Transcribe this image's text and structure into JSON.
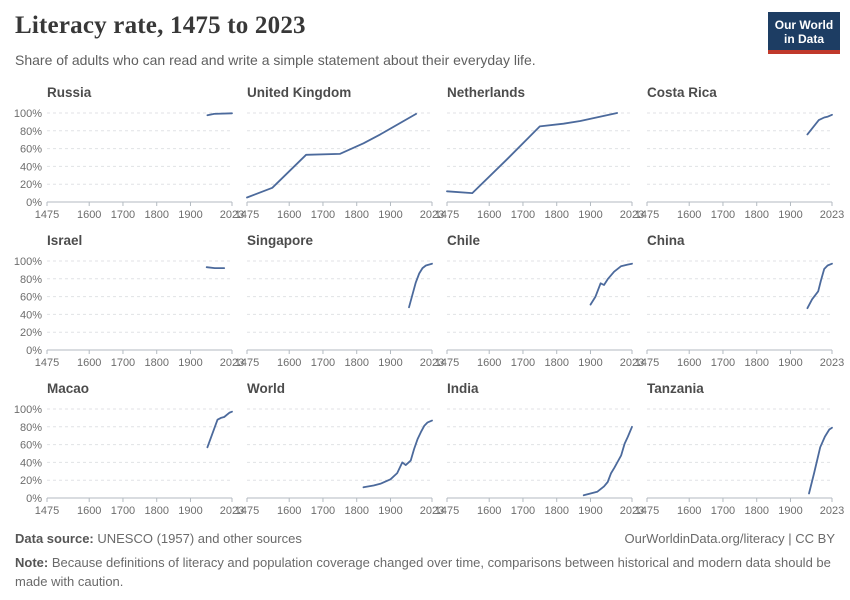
{
  "header": {
    "title": "Literacy rate, 1475 to 2023",
    "subtitle": "Share of adults who can read and write a simple statement about their everyday life.",
    "logo": {
      "line1": "Our World",
      "line2": "in Data"
    }
  },
  "footer": {
    "source_label": "Data source:",
    "source_text": " UNESCO (1957) and other sources",
    "attribution": "OurWorldinData.org/literacy | CC BY",
    "note_label": "Note:",
    "note_text": " Because definitions of literacy and population coverage changed over time, comparisons between historical and modern data should be made with caution."
  },
  "colors": {
    "line": "#4c6a9c",
    "gridline": "#e0e2e5",
    "axis": "#b3bac1",
    "tick_label": "#6d6d6d",
    "logo_bg": "#1d3d63",
    "logo_stripe": "#c0392b"
  },
  "chart_data": {
    "type": "line",
    "title": "Literacy rate, 1475 to 2023",
    "subtitle": "Share of adults who can read and write a simple statement about their everyday life.",
    "unit": "%",
    "layout": "small-multiples 4x3",
    "grid": "dashed horizontal gridlines",
    "legend": "none",
    "x_range": [
      1475,
      2023
    ],
    "y_range": [
      0,
      100
    ],
    "x_ticks": [
      1475,
      1600,
      1700,
      1800,
      1900,
      2023
    ],
    "y_ticks": [
      0,
      20,
      40,
      60,
      80,
      100
    ],
    "y_tick_suffix": "%",
    "panels": [
      {
        "title": "Russia",
        "points": [
          [
            1950,
            97.5
          ],
          [
            1970,
            99
          ],
          [
            2023,
            99.7
          ]
        ]
      },
      {
        "title": "United Kingdom",
        "points": [
          [
            1475,
            5
          ],
          [
            1550,
            16
          ],
          [
            1650,
            53
          ],
          [
            1750,
            54
          ],
          [
            1820,
            66
          ],
          [
            1870,
            76
          ],
          [
            1976,
            99
          ]
        ]
      },
      {
        "title": "Netherlands",
        "points": [
          [
            1475,
            12
          ],
          [
            1550,
            10
          ],
          [
            1650,
            47
          ],
          [
            1750,
            85
          ],
          [
            1820,
            88
          ],
          [
            1870,
            91
          ],
          [
            1979,
            100
          ]
        ]
      },
      {
        "title": "Costa Rica",
        "points": [
          [
            1950,
            76
          ],
          [
            1984,
            92
          ],
          [
            2000,
            95
          ],
          [
            2011,
            96
          ],
          [
            2023,
            98
          ]
        ]
      },
      {
        "title": "Israel",
        "points": [
          [
            1948,
            93
          ],
          [
            1972,
            92
          ],
          [
            2000,
            92
          ]
        ]
      },
      {
        "title": "Singapore",
        "points": [
          [
            1955,
            48
          ],
          [
            1965,
            62
          ],
          [
            1975,
            76
          ],
          [
            1985,
            86
          ],
          [
            1995,
            92
          ],
          [
            2005,
            95
          ],
          [
            2023,
            97
          ]
        ]
      },
      {
        "title": "Chile",
        "points": [
          [
            1900,
            51
          ],
          [
            1915,
            60
          ],
          [
            1930,
            75
          ],
          [
            1940,
            73
          ],
          [
            1952,
            80
          ],
          [
            1970,
            88
          ],
          [
            1990,
            94
          ],
          [
            2010,
            96
          ],
          [
            2023,
            97
          ]
        ]
      },
      {
        "title": "China",
        "points": [
          [
            1950,
            47
          ],
          [
            1964,
            57
          ],
          [
            1982,
            66
          ],
          [
            1990,
            78
          ],
          [
            2000,
            91
          ],
          [
            2010,
            95
          ],
          [
            2023,
            97
          ]
        ]
      },
      {
        "title": "Macao",
        "points": [
          [
            1950,
            57
          ],
          [
            1980,
            88
          ],
          [
            1990,
            90
          ],
          [
            2000,
            91
          ],
          [
            2016,
            96
          ],
          [
            2023,
            97
          ]
        ]
      },
      {
        "title": "World",
        "points": [
          [
            1820,
            12
          ],
          [
            1850,
            14
          ],
          [
            1870,
            16
          ],
          [
            1900,
            21
          ],
          [
            1920,
            28
          ],
          [
            1935,
            40
          ],
          [
            1945,
            37
          ],
          [
            1960,
            42
          ],
          [
            1970,
            55
          ],
          [
            1980,
            66
          ],
          [
            1990,
            74
          ],
          [
            2000,
            81
          ],
          [
            2010,
            85
          ],
          [
            2023,
            87
          ]
        ]
      },
      {
        "title": "India",
        "points": [
          [
            1880,
            3
          ],
          [
            1900,
            5
          ],
          [
            1920,
            7
          ],
          [
            1940,
            13
          ],
          [
            1951,
            18
          ],
          [
            1961,
            28
          ],
          [
            1971,
            34
          ],
          [
            1981,
            41
          ],
          [
            1991,
            48
          ],
          [
            2001,
            61
          ],
          [
            2011,
            69
          ],
          [
            2023,
            80
          ]
        ]
      },
      {
        "title": "Tanzania",
        "points": [
          [
            1955,
            5
          ],
          [
            1970,
            28
          ],
          [
            1988,
            57
          ],
          [
            2002,
            69
          ],
          [
            2015,
            77
          ],
          [
            2023,
            79
          ]
        ]
      }
    ]
  }
}
